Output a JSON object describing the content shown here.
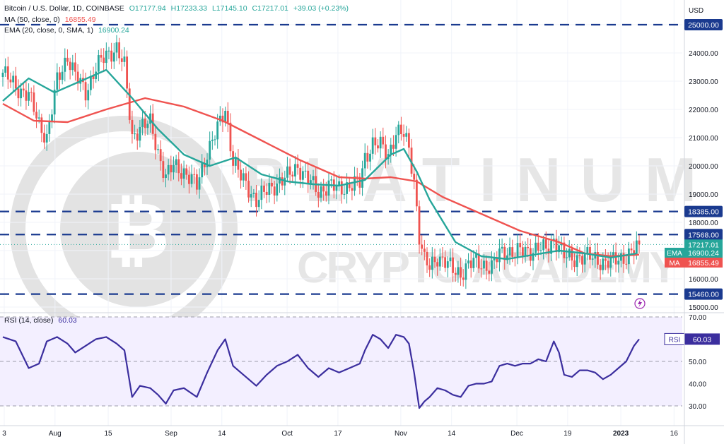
{
  "header": {
    "symbol": "Bitcoin / U.S. Dollar, 1D, COINBASE",
    "o": "O17177.94",
    "h": "H17233.33",
    "l": "L17145.10",
    "c": "C17217.01",
    "chg": "+39.03 (+0.23%)",
    "ma_label": "MA (50, close, 0)",
    "ma_value": "16855.49",
    "ema_label": "EMA (20, close, 0, SMA, 1)",
    "ema_value": "16900.24",
    "rsi_label": "RSI (14, close)",
    "rsi_value": "60.03"
  },
  "watermark": {
    "line1": "PLATINUM",
    "line2": "CRYPTO ACADEMY"
  },
  "colors": {
    "up": "#26a69a",
    "down": "#ef5350",
    "ema": "#26a69a",
    "ma": "#ef5350",
    "rsi": "#3b2e9e",
    "level": "#1a3a8f"
  },
  "chart_data": [
    {
      "type": "candlestick",
      "title": "Bitcoin / U.S. Dollar, 1D, COINBASE",
      "ylabel": "USD",
      "ylim": [
        15000,
        25000
      ],
      "ytick_labels": [
        "15000.00",
        "16000.00",
        "17000.00",
        "18000.00",
        "19000.00",
        "20000.00",
        "21000.00",
        "22000.00",
        "23000.00",
        "24000.00",
        "25000.00"
      ],
      "xtick_labels": [
        "3",
        "Aug",
        "15",
        "Sep",
        "14",
        "Oct",
        "17",
        "Nov",
        "14",
        "Dec",
        "19",
        "2023",
        "16"
      ],
      "levels": [
        {
          "value": 25000,
          "label": "25000.00"
        },
        {
          "value": 18385,
          "label": "18385.00"
        },
        {
          "value": 17568,
          "label": "17568.00"
        },
        {
          "value": 15460,
          "label": "15460.00"
        }
      ],
      "price_tags": [
        {
          "name": "",
          "value": 17217.01,
          "label": "17217.01",
          "color": "#26a69a"
        },
        {
          "name": "EMA",
          "value": 16900.24,
          "label": "16900.24",
          "color": "#26a69a"
        },
        {
          "name": "MA",
          "value": 16855.49,
          "label": "16855.49",
          "color": "#ef5350"
        }
      ],
      "close_path": [
        [
          0,
          23300
        ],
        [
          5,
          22800
        ],
        [
          10,
          22500
        ],
        [
          14,
          21500
        ],
        [
          17,
          21000
        ],
        [
          21,
          23000
        ],
        [
          25,
          23900
        ],
        [
          28,
          23200
        ],
        [
          32,
          22600
        ],
        [
          36,
          23500
        ],
        [
          40,
          23900
        ],
        [
          44,
          24200
        ],
        [
          47,
          23500
        ],
        [
          50,
          21000
        ],
        [
          53,
          21400
        ],
        [
          57,
          21500
        ],
        [
          60,
          20500
        ],
        [
          63,
          19600
        ],
        [
          66,
          20000
        ],
        [
          70,
          19800
        ],
        [
          75,
          19300
        ],
        [
          79,
          20500
        ],
        [
          83,
          21300
        ],
        [
          86,
          22000
        ],
        [
          89,
          20200
        ],
        [
          92,
          19600
        ],
        [
          95,
          19200
        ],
        [
          98,
          18800
        ],
        [
          102,
          19100
        ],
        [
          106,
          19400
        ],
        [
          110,
          19600
        ],
        [
          114,
          20000
        ],
        [
          118,
          19500
        ],
        [
          122,
          19100
        ],
        [
          126,
          19300
        ],
        [
          130,
          19200
        ],
        [
          134,
          19300
        ],
        [
          138,
          19400
        ],
        [
          140,
          20300
        ],
        [
          143,
          20800
        ],
        [
          146,
          20700
        ],
        [
          149,
          20400
        ],
        [
          152,
          21200
        ],
        [
          155,
          21100
        ],
        [
          157,
          20600
        ],
        [
          159,
          19500
        ],
        [
          161,
          17500
        ],
        [
          163,
          16600
        ],
        [
          165,
          16400
        ],
        [
          168,
          16800
        ],
        [
          171,
          16600
        ],
        [
          174,
          16300
        ],
        [
          177,
          16200
        ],
        [
          180,
          16500
        ],
        [
          183,
          16600
        ],
        [
          186,
          16500
        ],
        [
          189,
          16400
        ],
        [
          192,
          16900
        ],
        [
          195,
          17000
        ],
        [
          198,
          16900
        ],
        [
          201,
          17000
        ],
        [
          204,
          17000
        ],
        [
          207,
          17100
        ],
        [
          210,
          17000
        ],
        [
          213,
          17400
        ],
        [
          215,
          17200
        ],
        [
          217,
          16800
        ],
        [
          220,
          16700
        ],
        [
          223,
          16800
        ],
        [
          226,
          16800
        ],
        [
          229,
          16700
        ],
        [
          232,
          16600
        ],
        [
          235,
          16600
        ],
        [
          238,
          16700
        ],
        [
          241,
          16800
        ],
        [
          244,
          17000
        ],
        [
          246,
          17217
        ]
      ],
      "ema20_path": [
        [
          0,
          22300
        ],
        [
          10,
          23100
        ],
        [
          20,
          22600
        ],
        [
          30,
          23000
        ],
        [
          40,
          23400
        ],
        [
          50,
          22400
        ],
        [
          60,
          21300
        ],
        [
          70,
          20400
        ],
        [
          80,
          20000
        ],
        [
          90,
          20300
        ],
        [
          100,
          19700
        ],
        [
          110,
          19450
        ],
        [
          120,
          19350
        ],
        [
          130,
          19300
        ],
        [
          140,
          19500
        ],
        [
          150,
          20400
        ],
        [
          155,
          20600
        ],
        [
          160,
          19800
        ],
        [
          165,
          18800
        ],
        [
          175,
          17300
        ],
        [
          185,
          16800
        ],
        [
          195,
          16700
        ],
        [
          205,
          16850
        ],
        [
          215,
          17000
        ],
        [
          225,
          16900
        ],
        [
          235,
          16750
        ],
        [
          245,
          16900
        ]
      ],
      "ma50_path": [
        [
          0,
          22200
        ],
        [
          12,
          21600
        ],
        [
          25,
          21550
        ],
        [
          40,
          22000
        ],
        [
          55,
          22400
        ],
        [
          70,
          22100
        ],
        [
          85,
          21600
        ],
        [
          100,
          20900
        ],
        [
          115,
          20200
        ],
        [
          130,
          19600
        ],
        [
          140,
          19550
        ],
        [
          150,
          19600
        ],
        [
          160,
          19450
        ],
        [
          170,
          18900
        ],
        [
          185,
          18300
        ],
        [
          200,
          17700
        ],
        [
          215,
          17300
        ],
        [
          225,
          16900
        ],
        [
          235,
          16800
        ],
        [
          246,
          16855
        ]
      ]
    },
    {
      "type": "line",
      "title": "RSI (14, close)",
      "ylim": [
        25,
        72
      ],
      "ytick_labels": [
        "30.00",
        "40.00",
        "50.00",
        "60.00",
        "70.00"
      ],
      "band": [
        30,
        70
      ],
      "value_label": "60.03",
      "path": [
        [
          0,
          61
        ],
        [
          5,
          59
        ],
        [
          10,
          47
        ],
        [
          14,
          49
        ],
        [
          17,
          59
        ],
        [
          21,
          61
        ],
        [
          25,
          58
        ],
        [
          28,
          54
        ],
        [
          32,
          57
        ],
        [
          36,
          60
        ],
        [
          40,
          61
        ],
        [
          44,
          58
        ],
        [
          47,
          55
        ],
        [
          50,
          34
        ],
        [
          53,
          39
        ],
        [
          57,
          38
        ],
        [
          60,
          35
        ],
        [
          63,
          31
        ],
        [
          66,
          37
        ],
        [
          70,
          38
        ],
        [
          75,
          34
        ],
        [
          79,
          45
        ],
        [
          83,
          55
        ],
        [
          86,
          60
        ],
        [
          89,
          48
        ],
        [
          92,
          45
        ],
        [
          95,
          42
        ],
        [
          98,
          39
        ],
        [
          102,
          44
        ],
        [
          106,
          48
        ],
        [
          110,
          50
        ],
        [
          114,
          53
        ],
        [
          118,
          47
        ],
        [
          122,
          43
        ],
        [
          126,
          47
        ],
        [
          130,
          45
        ],
        [
          134,
          47
        ],
        [
          138,
          49
        ],
        [
          140,
          55
        ],
        [
          143,
          62
        ],
        [
          146,
          60
        ],
        [
          149,
          56
        ],
        [
          152,
          62
        ],
        [
          155,
          61
        ],
        [
          157,
          58
        ],
        [
          159,
          45
        ],
        [
          161,
          29
        ],
        [
          163,
          32
        ],
        [
          165,
          34
        ],
        [
          168,
          38
        ],
        [
          171,
          37
        ],
        [
          174,
          35
        ],
        [
          177,
          34
        ],
        [
          180,
          39
        ],
        [
          183,
          40
        ],
        [
          186,
          40
        ],
        [
          189,
          41
        ],
        [
          192,
          48
        ],
        [
          195,
          49
        ],
        [
          198,
          48
        ],
        [
          201,
          49
        ],
        [
          204,
          49
        ],
        [
          207,
          51
        ],
        [
          210,
          50
        ],
        [
          213,
          59
        ],
        [
          215,
          54
        ],
        [
          217,
          44
        ],
        [
          220,
          43
        ],
        [
          223,
          46
        ],
        [
          226,
          46
        ],
        [
          229,
          45
        ],
        [
          232,
          42
        ],
        [
          235,
          44
        ],
        [
          238,
          47
        ],
        [
          241,
          50
        ],
        [
          244,
          57
        ],
        [
          246,
          60
        ]
      ]
    }
  ]
}
